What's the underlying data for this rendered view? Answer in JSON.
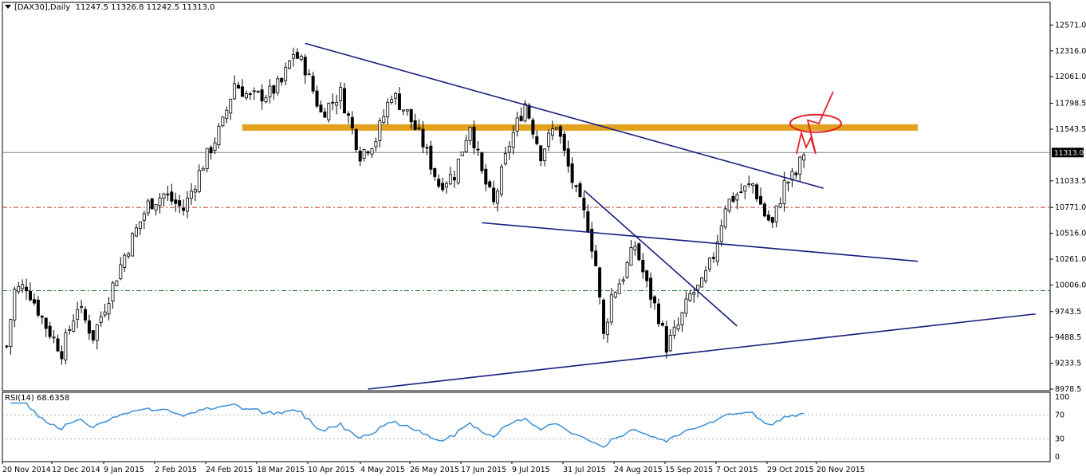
{
  "header": {
    "symbol": "[DAX30],Daily",
    "ohlc": "11247.5 11326.8 11242.5 11313.0"
  },
  "rsi": {
    "label": "RSI(14) 68.6358",
    "levels": [
      "100",
      "70",
      "30",
      "0"
    ]
  },
  "chart_data": {
    "type": "candlestick",
    "symbol": "DAX30",
    "timeframe": "Daily",
    "last_price": "11313.0",
    "y_ticks": [
      "12571.0",
      "12316.0",
      "12061.0",
      "11798.5",
      "11543.5",
      "11033.5",
      "10771.0",
      "10516.0",
      "10261.0",
      "10006.0",
      "9743.5",
      "9488.5",
      "9233.5",
      "8978.5"
    ],
    "ylim": [
      8978.5,
      12700
    ],
    "x_ticks": [
      "20 Nov 2014",
      "12 Dec 2014",
      "9 Jan 2015",
      "2 Feb 2015",
      "24 Feb 2015",
      "18 Mar 2015",
      "10 Apr 2015",
      "4 May 2015",
      "26 May 2015",
      "17 Jun 2015",
      "9 Jul 2015",
      "31 Jul 2015",
      "24 Aug 2015",
      "15 Sep 2015",
      "7 Oct 2015",
      "29 Oct 2015",
      "20 Nov 2015"
    ],
    "price_path": [
      [
        0,
        9400
      ],
      [
        2,
        9950
      ],
      [
        5,
        10000
      ],
      [
        10,
        9600
      ],
      [
        14,
        9350
      ],
      [
        18,
        9800
      ],
      [
        22,
        9500
      ],
      [
        26,
        9900
      ],
      [
        30,
        10300
      ],
      [
        36,
        10800
      ],
      [
        40,
        10900
      ],
      [
        45,
        10750
      ],
      [
        50,
        11200
      ],
      [
        55,
        11600
      ],
      [
        58,
        12000
      ],
      [
        62,
        11850
      ],
      [
        67,
        11900
      ],
      [
        70,
        12000
      ],
      [
        73,
        12300
      ],
      [
        76,
        12150
      ],
      [
        80,
        11700
      ],
      [
        85,
        11900
      ],
      [
        90,
        11300
      ],
      [
        94,
        11450
      ],
      [
        98,
        11900
      ],
      [
        102,
        11700
      ],
      [
        106,
        11400
      ],
      [
        110,
        11000
      ],
      [
        114,
        11100
      ],
      [
        118,
        11600
      ],
      [
        121,
        11100
      ],
      [
        124,
        10800
      ],
      [
        128,
        11400
      ],
      [
        132,
        11800
      ],
      [
        136,
        11300
      ],
      [
        140,
        11600
      ],
      [
        142,
        11300
      ],
      [
        145,
        10900
      ],
      [
        148,
        10600
      ],
      [
        150,
        10200
      ],
      [
        152,
        9500
      ],
      [
        154,
        9900
      ],
      [
        157,
        10100
      ],
      [
        160,
        10400
      ],
      [
        163,
        10000
      ],
      [
        166,
        9700
      ],
      [
        168,
        9400
      ],
      [
        171,
        9600
      ],
      [
        174,
        9900
      ],
      [
        177,
        10000
      ],
      [
        180,
        10300
      ],
      [
        183,
        10800
      ],
      [
        186,
        10900
      ],
      [
        190,
        11000
      ],
      [
        193,
        10700
      ],
      [
        195,
        10600
      ],
      [
        198,
        11000
      ],
      [
        201,
        11100
      ],
      [
        203,
        11313
      ]
    ],
    "rsi_levels": [
      70,
      30
    ],
    "drawings": [
      {
        "type": "trendline",
        "name": "descending resistance",
        "from": [
          76,
          12390
        ],
        "to": [
          208,
          10960
        ]
      },
      {
        "type": "trendline",
        "name": "lower channel line",
        "from": [
          121,
          10620
        ],
        "to": [
          232,
          10240
        ]
      },
      {
        "type": "trendline",
        "name": "steep descending line",
        "from": [
          147,
          10940
        ],
        "to": [
          186,
          9600
        ]
      },
      {
        "type": "trendline",
        "name": "rising support",
        "from": [
          92,
          8978.5
        ],
        "to": [
          262,
          9720
        ]
      },
      {
        "type": "horizontal-band",
        "name": "resistance zone",
        "y": 11560,
        "from": 60,
        "to": 232,
        "color": "#e2a11e"
      },
      {
        "type": "hline",
        "y": 10771,
        "color": "#c0392b",
        "style": "dash-dot"
      },
      {
        "type": "hline",
        "y": 9950,
        "color": "#2e7d32",
        "style": "dash-dot"
      },
      {
        "type": "hline",
        "y": 11313,
        "color": "#808080",
        "style": "solid"
      },
      {
        "type": "ellipse",
        "name": "target circle",
        "y": 11600,
        "color": "#e0202a"
      }
    ],
    "colors": {
      "candle_up": "#ffffff",
      "candle_down": "#000000",
      "trendline": "#141c7c",
      "band": "#e2a11e",
      "rsi_line": "#3a8fd6",
      "annotation": "#e0202a"
    }
  }
}
